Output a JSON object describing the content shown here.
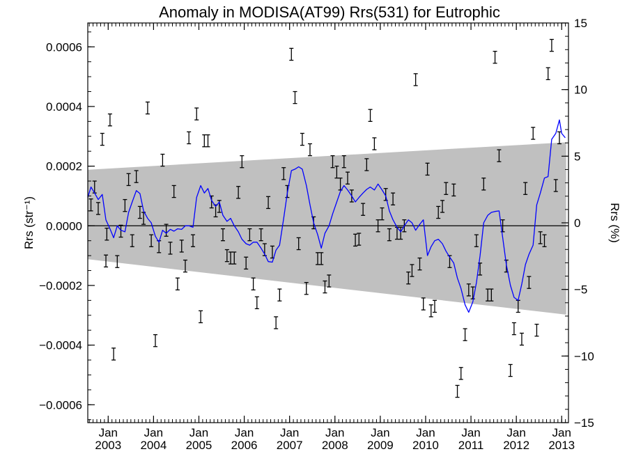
{
  "chart_data": {
    "type": "line",
    "title": "Anomaly in MODISA(AT99) Rrs(531) for Eutrophic",
    "ylabel": "Rrs (str⁻¹)",
    "y2label": "Rrs (%)",
    "xlim": [
      2002.55,
      2013.15
    ],
    "ylim": [
      -0.00066,
      0.00068
    ],
    "y2lim": [
      -15,
      15
    ],
    "yticks": [
      -0.0006,
      -0.0004,
      -0.0002,
      0.0,
      0.0002,
      0.0004,
      0.0006
    ],
    "ytick_labels": [
      "−0.0006",
      "−0.0004",
      "−0.0002",
      "0.0000",
      "0.0002",
      "0.0004",
      "0.0006"
    ],
    "y2ticks": [
      -15,
      -10,
      -5,
      0,
      5,
      10,
      15
    ],
    "y2tick_labels": [
      "−15",
      "−10",
      "−5",
      "0",
      "5",
      "10",
      "15"
    ],
    "xticks": [
      {
        "x": 2003.0,
        "month": "Jan",
        "year": "2003"
      },
      {
        "x": 2004.0,
        "month": "Jan",
        "year": "2004"
      },
      {
        "x": 2005.0,
        "month": "Jan",
        "year": "2005"
      },
      {
        "x": 2006.0,
        "month": "Jan",
        "year": "2006"
      },
      {
        "x": 2007.0,
        "month": "Jan",
        "year": "2007"
      },
      {
        "x": 2008.0,
        "month": "Jan",
        "year": "2008"
      },
      {
        "x": 2009.0,
        "month": "Jan",
        "year": "2009"
      },
      {
        "x": 2010.0,
        "month": "Jan",
        "year": "2010"
      },
      {
        "x": 2011.0,
        "month": "Jan",
        "year": "2011"
      },
      {
        "x": 2012.0,
        "month": "Jan",
        "year": "2012"
      },
      {
        "x": 2013.0,
        "month": "Jan",
        "year": "2013"
      }
    ],
    "zero_line": 0.0,
    "band": {
      "color": "#c0c0c0",
      "x": [
        2002.55,
        2013.1
      ],
      "upper": [
        0.000188,
        0.00028
      ],
      "lower": [
        -0.000112,
        -0.000298
      ]
    },
    "error_bar_color": "#000000",
    "error_bar_half_height": 2e-05,
    "points": [
      {
        "x": 2002.62,
        "y": 7e-05
      },
      {
        "x": 2002.7,
        "y": 0.00013
      },
      {
        "x": 2002.78,
        "y": 5.8e-05
      },
      {
        "x": 2002.87,
        "y": 0.00029
      },
      {
        "x": 2002.95,
        "y": -0.000118
      },
      {
        "x": 2002.97,
        "y": -2.8e-05
      },
      {
        "x": 2003.04,
        "y": 0.000355
      },
      {
        "x": 2003.12,
        "y": -0.00043
      },
      {
        "x": 2003.2,
        "y": -0.00012
      },
      {
        "x": 2003.28,
        "y": -1.8e-05
      },
      {
        "x": 2003.37,
        "y": 6.8e-05
      },
      {
        "x": 2003.45,
        "y": 0.000155
      },
      {
        "x": 2003.53,
        "y": -5e-05
      },
      {
        "x": 2003.62,
        "y": 0.000165
      },
      {
        "x": 2003.7,
        "y": 4.5e-05
      },
      {
        "x": 2003.78,
        "y": 2.5e-05
      },
      {
        "x": 2003.87,
        "y": 0.000395
      },
      {
        "x": 2003.95,
        "y": -5e-05
      },
      {
        "x": 2004.04,
        "y": -0.000385
      },
      {
        "x": 2004.12,
        "y": -7e-05
      },
      {
        "x": 2004.2,
        "y": 0.00022
      },
      {
        "x": 2004.28,
        "y": -1.5e-05
      },
      {
        "x": 2004.37,
        "y": -7.5e-05
      },
      {
        "x": 2004.45,
        "y": 0.000115
      },
      {
        "x": 2004.53,
        "y": -0.000195
      },
      {
        "x": 2004.62,
        "y": -6.8e-05
      },
      {
        "x": 2004.7,
        "y": -0.000135
      },
      {
        "x": 2004.78,
        "y": 0.000295
      },
      {
        "x": 2004.87,
        "y": -5e-05
      },
      {
        "x": 2004.95,
        "y": 0.000375
      },
      {
        "x": 2005.04,
        "y": -0.000305
      },
      {
        "x": 2005.12,
        "y": 0.000285
      },
      {
        "x": 2005.2,
        "y": 0.000285
      },
      {
        "x": 2005.28,
        "y": 8e-05
      },
      {
        "x": 2005.37,
        "y": 5e-05
      },
      {
        "x": 2005.45,
        "y": 6.5e-05
      },
      {
        "x": 2005.53,
        "y": -3e-05
      },
      {
        "x": 2005.62,
        "y": -0.0001
      },
      {
        "x": 2005.7,
        "y": -0.000108
      },
      {
        "x": 2005.78,
        "y": -0.000108
      },
      {
        "x": 2005.87,
        "y": 0.000112
      },
      {
        "x": 2005.95,
        "y": 0.000215
      },
      {
        "x": 2006.04,
        "y": -0.000125
      },
      {
        "x": 2006.12,
        "y": -3e-05
      },
      {
        "x": 2006.2,
        "y": -0.000195
      },
      {
        "x": 2006.28,
        "y": -0.000258
      },
      {
        "x": 2006.37,
        "y": -3e-05
      },
      {
        "x": 2006.45,
        "y": -8e-05
      },
      {
        "x": 2006.53,
        "y": 7.8e-05
      },
      {
        "x": 2006.62,
        "y": -8.8e-05
      },
      {
        "x": 2006.7,
        "y": -0.000325
      },
      {
        "x": 2006.78,
        "y": -0.000232
      },
      {
        "x": 2006.87,
        "y": 0.000175
      },
      {
        "x": 2006.95,
        "y": 0.000115
      },
      {
        "x": 2007.04,
        "y": 0.000575
      },
      {
        "x": 2007.12,
        "y": 0.00043
      },
      {
        "x": 2007.2,
        "y": -6e-05
      },
      {
        "x": 2007.28,
        "y": 0.00029
      },
      {
        "x": 2007.37,
        "y": -0.00021
      },
      {
        "x": 2007.45,
        "y": 0.000255
      },
      {
        "x": 2007.53,
        "y": 1e-05
      },
      {
        "x": 2007.62,
        "y": -0.00011
      },
      {
        "x": 2007.7,
        "y": -0.00011
      },
      {
        "x": 2007.78,
        "y": -0.000205
      },
      {
        "x": 2007.87,
        "y": -0.000185
      },
      {
        "x": 2007.95,
        "y": 0.000215
      },
      {
        "x": 2008.04,
        "y": 0.00018
      },
      {
        "x": 2008.12,
        "y": 0.00014
      },
      {
        "x": 2008.2,
        "y": 0.000215
      },
      {
        "x": 2008.28,
        "y": 0.00016
      },
      {
        "x": 2008.37,
        "y": 0.0001
      },
      {
        "x": 2008.45,
        "y": -4.8e-05
      },
      {
        "x": 2008.53,
        "y": -4.5e-05
      },
      {
        "x": 2008.62,
        "y": 5.5e-05
      },
      {
        "x": 2008.7,
        "y": 0.000205
      },
      {
        "x": 2008.78,
        "y": 0.00037
      },
      {
        "x": 2008.87,
        "y": 0.000275
      },
      {
        "x": 2008.95,
        "y": 0.0
      },
      {
        "x": 2009.04,
        "y": 4e-05
      },
      {
        "x": 2009.12,
        "y": 0.000105
      },
      {
        "x": 2009.2,
        "y": -3e-05
      },
      {
        "x": 2009.28,
        "y": 9e-05
      },
      {
        "x": 2009.37,
        "y": -2.5e-05
      },
      {
        "x": 2009.45,
        "y": -2.5e-05
      },
      {
        "x": 2009.53,
        "y": 0.0
      },
      {
        "x": 2009.62,
        "y": -0.000175
      },
      {
        "x": 2009.7,
        "y": -0.00015
      },
      {
        "x": 2009.78,
        "y": 0.00049
      },
      {
        "x": 2009.87,
        "y": -0.000128
      },
      {
        "x": 2009.95,
        "y": -0.000262
      },
      {
        "x": 2010.04,
        "y": 0.00019
      },
      {
        "x": 2010.12,
        "y": -0.000285
      },
      {
        "x": 2010.2,
        "y": -0.00027
      },
      {
        "x": 2010.28,
        "y": 4.5e-05
      },
      {
        "x": 2010.37,
        "y": 6.5e-05
      },
      {
        "x": 2010.45,
        "y": 0.000125
      },
      {
        "x": 2010.53,
        "y": -0.00012
      },
      {
        "x": 2010.62,
        "y": 0.00012
      },
      {
        "x": 2010.7,
        "y": -0.000555
      },
      {
        "x": 2010.78,
        "y": -0.000495
      },
      {
        "x": 2010.87,
        "y": -0.000365
      },
      {
        "x": 2010.95,
        "y": -0.000215
      },
      {
        "x": 2011.04,
        "y": -0.000225
      },
      {
        "x": 2011.12,
        "y": -5e-05
      },
      {
        "x": 2011.2,
        "y": -0.000145
      },
      {
        "x": 2011.28,
        "y": 0.00014
      },
      {
        "x": 2011.37,
        "y": -0.000232
      },
      {
        "x": 2011.45,
        "y": -0.000232
      },
      {
        "x": 2011.53,
        "y": 0.000565
      },
      {
        "x": 2011.62,
        "y": 0.000235
      },
      {
        "x": 2011.7,
        "y": 0.0
      },
      {
        "x": 2011.78,
        "y": -0.000135
      },
      {
        "x": 2011.87,
        "y": -0.000485
      },
      {
        "x": 2011.95,
        "y": -0.000345
      },
      {
        "x": 2012.04,
        "y": -0.00027
      },
      {
        "x": 2012.12,
        "y": -0.00038
      },
      {
        "x": 2012.2,
        "y": 0.000125
      },
      {
        "x": 2012.28,
        "y": -0.00019
      },
      {
        "x": 2012.37,
        "y": 0.00031
      },
      {
        "x": 2012.45,
        "y": -0.00035
      },
      {
        "x": 2012.53,
        "y": -4e-05
      },
      {
        "x": 2012.62,
        "y": -5e-05
      },
      {
        "x": 2012.7,
        "y": 0.00051
      },
      {
        "x": 2012.78,
        "y": 0.000605
      },
      {
        "x": 2012.87,
        "y": 0.000135
      },
      {
        "x": 2012.95,
        "y": 0.000295
      }
    ],
    "series": [
      {
        "color": "#0000ff",
        "x": [
          2002.55,
          2002.62,
          2002.7,
          2002.78,
          2002.87,
          2002.95,
          2003.04,
          2003.12,
          2003.2,
          2003.28,
          2003.37,
          2003.45,
          2003.53,
          2003.62,
          2003.7,
          2003.78,
          2003.87,
          2003.95,
          2004.04,
          2004.12,
          2004.2,
          2004.28,
          2004.37,
          2004.45,
          2004.53,
          2004.62,
          2004.7,
          2004.78,
          2004.87,
          2004.95,
          2005.04,
          2005.12,
          2005.2,
          2005.28,
          2005.37,
          2005.45,
          2005.53,
          2005.62,
          2005.7,
          2005.78,
          2005.87,
          2005.95,
          2006.04,
          2006.12,
          2006.2,
          2006.28,
          2006.37,
          2006.45,
          2006.53,
          2006.62,
          2006.7,
          2006.78,
          2006.87,
          2006.95,
          2007.04,
          2007.12,
          2007.2,
          2007.28,
          2007.37,
          2007.45,
          2007.53,
          2007.62,
          2007.7,
          2007.78,
          2007.87,
          2007.95,
          2008.04,
          2008.12,
          2008.2,
          2008.28,
          2008.37,
          2008.45,
          2008.53,
          2008.62,
          2008.7,
          2008.78,
          2008.87,
          2008.95,
          2009.04,
          2009.12,
          2009.2,
          2009.28,
          2009.37,
          2009.45,
          2009.53,
          2009.62,
          2009.7,
          2009.78,
          2009.87,
          2009.95,
          2010.04,
          2010.12,
          2010.2,
          2010.28,
          2010.37,
          2010.45,
          2010.53,
          2010.62,
          2010.7,
          2010.78,
          2010.87,
          2010.95,
          2011.04,
          2011.12,
          2011.2,
          2011.28,
          2011.37,
          2011.45,
          2011.53,
          2011.62,
          2011.7,
          2011.78,
          2011.87,
          2011.95,
          2012.04,
          2012.12,
          2012.2,
          2012.28,
          2012.37,
          2012.45,
          2012.53,
          2012.62,
          2012.7,
          2012.78,
          2012.87,
          2012.95,
          2013.0,
          2013.08
        ],
        "y": [
          9.5e-05,
          0.00013,
          0.00011,
          8.8e-05,
          0.000105,
          2e-05,
          -1e-05,
          -4e-05,
          0.0,
          -1.5e-05,
          -2e-05,
          4.5e-05,
          8e-05,
          0.000118,
          0.000108,
          5e-05,
          2.5e-05,
          1e-05,
          -3.5e-05,
          -5.5e-05,
          -1.5e-05,
          -2.5e-05,
          -1.2e-05,
          -1.8e-05,
          -1e-05,
          -1.2e-05,
          0.0,
          0.0,
          -5e-06,
          9.5e-05,
          0.000135,
          0.00011,
          0.000125,
          8.5e-05,
          6.5e-05,
          8e-05,
          3.5e-05,
          1.5e-05,
          2.5e-05,
          0.0,
          -2e-05,
          -4.5e-05,
          -6e-05,
          -6.5e-05,
          -5.5e-05,
          -5.5e-05,
          -7.5e-05,
          -9.5e-05,
          -0.00012,
          -0.000122,
          -8.2e-05,
          -6.5e-05,
          2.5e-05,
          0.00011,
          0.000185,
          0.00019,
          0.000198,
          0.00019,
          0.000135,
          7e-05,
          1e-05,
          -3e-05,
          -7.5e-05,
          -2.5e-05,
          0.0,
          4e-05,
          8e-05,
          0.000115,
          0.000135,
          0.00012,
          0.0001,
          8e-05,
          9.5e-05,
          0.00011,
          0.000122,
          0.00013,
          0.00012,
          0.00014,
          0.00012,
          0.0001,
          5e-05,
          2e-05,
          -5e-06,
          -2e-05,
          0.0,
          2e-05,
          1e-05,
          -1.5e-05,
          5e-06,
          2e-05,
          -0.0001,
          -7e-05,
          -5e-05,
          -4.5e-05,
          -6e-05,
          -8.5e-05,
          -0.000105,
          -0.000125,
          -0.000175,
          -0.00021,
          -0.000265,
          -0.00029,
          -0.000255,
          -0.00019,
          -0.0001,
          1e-05,
          3.5e-05,
          4.5e-05,
          4.8e-05,
          5e-05,
          -4e-05,
          -0.00013,
          -0.0002,
          -0.00024,
          -0.00025,
          -0.000195,
          -0.00013,
          -9.5e-05,
          -6.5e-05,
          7e-05,
          0.00011,
          0.00016,
          0.000165,
          0.00029,
          0.00031,
          0.000355,
          0.00031,
          0.000295
        ]
      }
    ]
  }
}
